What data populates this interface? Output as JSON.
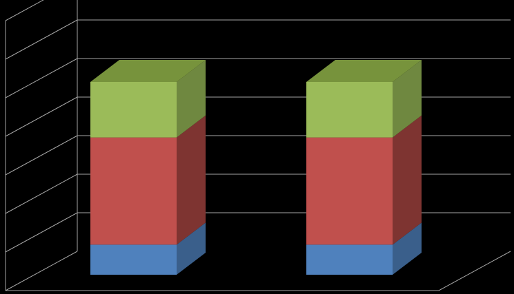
{
  "chart_data": {
    "type": "bar",
    "stacked": true,
    "three_d": true,
    "categories": [
      "",
      ""
    ],
    "series": [
      {
        "values": [
          0.78,
          0.78
        ],
        "color": "#4F81BD",
        "side_color": "#3A5F8B",
        "top_color": "#6A98CF"
      },
      {
        "values": [
          2.78,
          2.78
        ],
        "color": "#C0504D",
        "side_color": "#7E3431",
        "top_color": "#D26A67"
      },
      {
        "values": [
          1.44,
          1.44
        ],
        "color": "#9BBB59",
        "side_color": "#6F8840",
        "top_color": "#77933C"
      }
    ],
    "ylim": [
      0,
      7
    ],
    "grid": true,
    "legend": "none",
    "colors": {
      "background": "#000000",
      "gridline": "#A6A6A6"
    }
  }
}
